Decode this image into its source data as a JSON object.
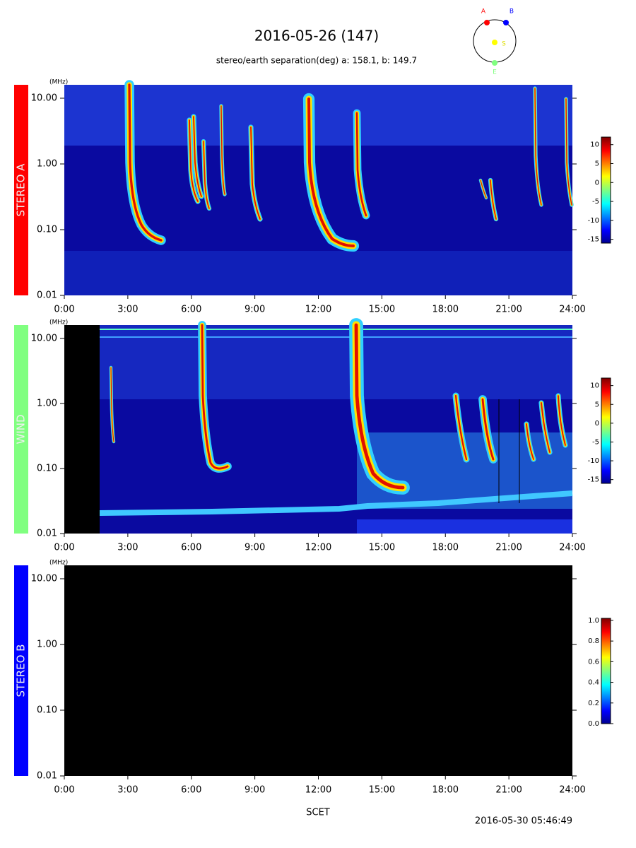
{
  "title": "2016-05-26 (147)",
  "subtitle": "stereo/earth separation(deg) a: 158.1, b: 149.7",
  "orbit_labels": [
    "A",
    "B",
    "S",
    "E"
  ],
  "x_label": "SCET",
  "timestamp": "2016-05-30 05:46:49",
  "chart_data": [
    {
      "type": "spectrogram",
      "panel_label": "STEREO A",
      "panel_color": "#ff0000",
      "y_unit": "(MHz)",
      "log_scale": true,
      "ylim": [
        0.01,
        16
      ],
      "yticks": [
        0.01,
        {
          "value": 0.1,
          "label": "0.10"
        },
        {
          "value": 1,
          "label": "1.00"
        },
        {
          "value": 10,
          "label": "10.00"
        }
      ],
      "xlim": [
        0,
        24
      ],
      "xticks": [
        {
          "value": 0,
          "label": "0:00"
        },
        {
          "value": 3,
          "label": "3:00"
        },
        {
          "value": 6,
          "label": "6:00"
        },
        {
          "value": 9,
          "label": "9:00"
        },
        {
          "value": 12,
          "label": "12:00"
        },
        {
          "value": 15,
          "label": "15:00"
        },
        {
          "value": 18,
          "label": "18:00"
        },
        {
          "value": 21,
          "label": "21:00"
        },
        {
          "value": 24,
          "label": "24:00"
        }
      ],
      "colorbar_lim": [
        -16,
        12
      ],
      "colorbar_ticks": [
        -15,
        -10,
        -5,
        0,
        5,
        10
      ]
    },
    {
      "type": "spectrogram",
      "panel_label": "WIND",
      "panel_color": "#80ff80",
      "y_unit": "(MHz)",
      "log_scale": true,
      "ylim": [
        0.01,
        16
      ],
      "yticks": [
        0.01,
        {
          "value": 0.1,
          "label": "0.10"
        },
        {
          "value": 1,
          "label": "1.00"
        },
        {
          "value": 10,
          "label": "10.00"
        }
      ],
      "xlim": [
        0,
        24
      ],
      "xticks": [
        {
          "value": 0,
          "label": "0:00"
        },
        {
          "value": 3,
          "label": "3:00"
        },
        {
          "value": 6,
          "label": "6:00"
        },
        {
          "value": 9,
          "label": "9:00"
        },
        {
          "value": 12,
          "label": "12:00"
        },
        {
          "value": 15,
          "label": "15:00"
        },
        {
          "value": 18,
          "label": "18:00"
        },
        {
          "value": 21,
          "label": "21:00"
        },
        {
          "value": 24,
          "label": "24:00"
        }
      ],
      "colorbar_lim": [
        -16,
        12
      ],
      "colorbar_ticks": [
        -15,
        -10,
        -5,
        0,
        5,
        10
      ]
    },
    {
      "type": "spectrogram",
      "panel_label": "STEREO B",
      "panel_color": "#0000ff",
      "y_unit": "(MHz)",
      "log_scale": true,
      "ylim": [
        0.01,
        16
      ],
      "yticks": [
        0.01,
        {
          "value": 0.1,
          "label": "0.10"
        },
        {
          "value": 1,
          "label": "1.00"
        },
        {
          "value": 10,
          "label": "10.00"
        }
      ],
      "xlim": [
        0,
        24
      ],
      "xticks": [
        {
          "value": 0,
          "label": "0:00"
        },
        {
          "value": 3,
          "label": "3:00"
        },
        {
          "value": 6,
          "label": "6:00"
        },
        {
          "value": 9,
          "label": "9:00"
        },
        {
          "value": 12,
          "label": "12:00"
        },
        {
          "value": 15,
          "label": "15:00"
        },
        {
          "value": 18,
          "label": "18:00"
        },
        {
          "value": 21,
          "label": "21:00"
        },
        {
          "value": 24,
          "label": "24:00"
        }
      ],
      "colorbar_lim": [
        0,
        1.02
      ],
      "colorbar_ticks": [
        {
          "value": 0,
          "label": "0.0"
        },
        0.2,
        0.4,
        0.6,
        0.8,
        {
          "value": 1,
          "label": "1.0"
        }
      ]
    }
  ]
}
